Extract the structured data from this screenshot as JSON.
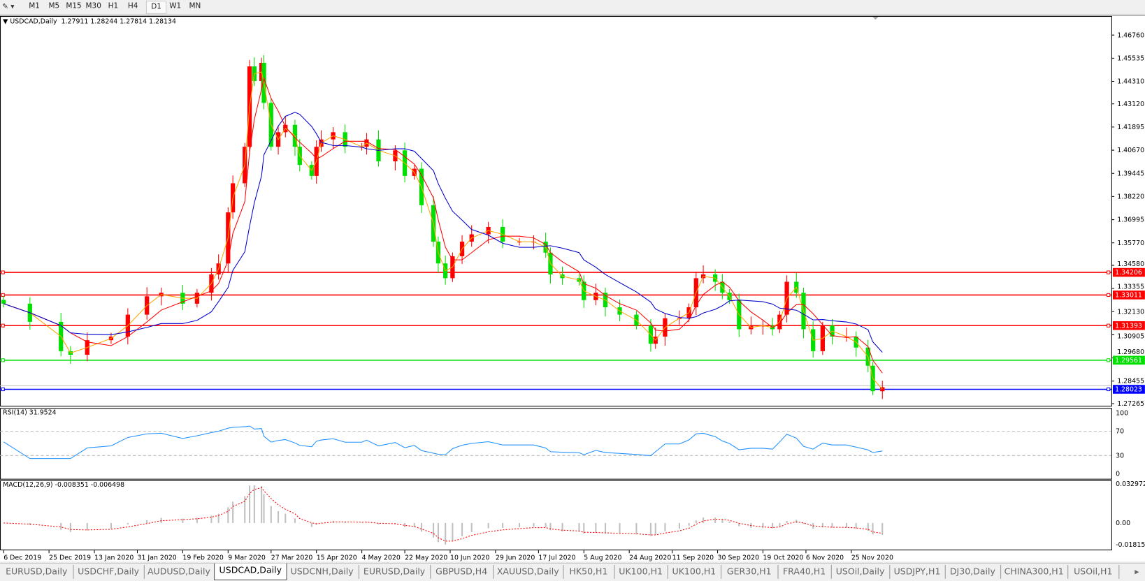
{
  "toolbar": {
    "timeframes": [
      "M1",
      "M5",
      "M15",
      "M30",
      "H1",
      "H4",
      "D1",
      "W1",
      "MN"
    ],
    "active_timeframe": "D1"
  },
  "chart": {
    "symbol_label": "USDCAD,Daily",
    "ohlc_label": "1.27911 1.28244 1.27814 1.28134",
    "rsi_label": "RSI(14) 31.9524",
    "macd_label": "MACD(12,26,9) -0.008351 -0.006498",
    "colors": {
      "bull": "#ff0000",
      "bear": "#00e000",
      "ma_fast": "#ffa500",
      "ma_mid": "#ff0000",
      "ma_slow": "#0000cc",
      "rsi": "#1e90ff",
      "macd_hist": "#c0c0c0",
      "macd_signal": "#ff0000"
    }
  },
  "chart_data": {
    "type": "candlestick",
    "ylim": [
      1.27265,
      1.4676
    ],
    "price_ticks": [
      "1.46760",
      "1.45535",
      "1.44310",
      "1.43120",
      "1.41895",
      "1.40670",
      "1.39445",
      "1.38220",
      "1.36995",
      "1.35770",
      "1.34580",
      "1.33355",
      "1.32130",
      "1.30905",
      "1.29680",
      "1.28455",
      "1.27265"
    ],
    "date_ticks": [
      "6 Dec 2019",
      "25 Dec 2019",
      "13 Jan 2020",
      "31 Jan 2020",
      "19 Feb 2020",
      "9 Mar 2020",
      "27 Mar 2020",
      "15 Apr 2020",
      "4 May 2020",
      "22 May 2020",
      "10 Jun 2020",
      "29 Jun 2020",
      "17 Jul 2020",
      "5 Aug 2020",
      "24 Aug 2020",
      "11 Sep 2020",
      "30 Sep 2020",
      "19 Oct 2020",
      "6 Nov 2020",
      "25 Nov 2020"
    ],
    "date_tick_dates": [
      "2019-12-06",
      "2019-12-25",
      "2020-01-13",
      "2020-01-31",
      "2020-02-19",
      "2020-03-09",
      "2020-03-27",
      "2020-04-15",
      "2020-05-04",
      "2020-05-22",
      "2020-06-10",
      "2020-06-29",
      "2020-07-17",
      "2020-08-05",
      "2020-08-24",
      "2020-09-11",
      "2020-09-30",
      "2020-10-19",
      "2020-11-06",
      "2020-11-25"
    ],
    "closes": [
      [
        "2019-12-06",
        1.3255
      ],
      [
        "2019-12-17",
        1.3159
      ],
      [
        "2019-12-30",
        1.3004
      ],
      [
        "2020-01-03",
        1.2985
      ],
      [
        "2020-01-10",
        1.3062
      ],
      [
        "2020-01-20",
        1.3081
      ],
      [
        "2020-01-27",
        1.3197
      ],
      [
        "2020-02-04",
        1.3294
      ],
      [
        "2020-02-10",
        1.3313
      ],
      [
        "2020-02-19",
        1.3255
      ],
      [
        "2020-02-25",
        1.3313
      ],
      [
        "2020-03-02",
        1.341
      ],
      [
        "2020-03-05",
        1.3468
      ],
      [
        "2020-03-09",
        1.3738
      ],
      [
        "2020-03-11",
        1.3892
      ],
      [
        "2020-03-16",
        1.4085
      ],
      [
        "2020-03-18",
        1.451
      ],
      [
        "2020-03-20",
        1.4433
      ],
      [
        "2020-03-23",
        1.4529
      ],
      [
        "2020-03-24",
        1.4317
      ],
      [
        "2020-03-27",
        1.4085
      ],
      [
        "2020-03-30",
        1.4162
      ],
      [
        "2020-04-02",
        1.4201
      ],
      [
        "2020-04-06",
        1.4085
      ],
      [
        "2020-04-08",
        1.3989
      ],
      [
        "2020-04-13",
        1.3931
      ],
      [
        "2020-04-15",
        1.4085
      ],
      [
        "2020-04-17",
        1.4124
      ],
      [
        "2020-04-22",
        1.4162
      ],
      [
        "2020-04-27",
        1.4085
      ],
      [
        "2020-05-04",
        1.4085
      ],
      [
        "2020-05-06",
        1.4124
      ],
      [
        "2020-05-11",
        1.4008
      ],
      [
        "2020-05-18",
        1.4066
      ],
      [
        "2020-05-22",
        1.3931
      ],
      [
        "2020-05-26",
        1.3969
      ],
      [
        "2020-05-29",
        1.3776
      ],
      [
        "2020-06-03",
        1.3583
      ],
      [
        "2020-06-05",
        1.3468
      ],
      [
        "2020-06-08",
        1.339
      ],
      [
        "2020-06-11",
        1.3506
      ],
      [
        "2020-06-15",
        1.3583
      ],
      [
        "2020-06-19",
        1.3622
      ],
      [
        "2020-06-26",
        1.3661
      ],
      [
        "2020-07-02",
        1.3583
      ],
      [
        "2020-07-09",
        1.3583
      ],
      [
        "2020-07-15",
        1.3583
      ],
      [
        "2020-07-20",
        1.3525
      ],
      [
        "2020-07-22",
        1.341
      ],
      [
        "2020-07-27",
        1.339
      ],
      [
        "2020-08-03",
        1.3371
      ],
      [
        "2020-08-05",
        1.3274
      ],
      [
        "2020-08-10",
        1.3313
      ],
      [
        "2020-08-14",
        1.3236
      ],
      [
        "2020-08-20",
        1.3197
      ],
      [
        "2020-08-27",
        1.3139
      ],
      [
        "2020-09-02",
        1.3043
      ],
      [
        "2020-09-04",
        1.3081
      ],
      [
        "2020-09-08",
        1.3178
      ],
      [
        "2020-09-14",
        1.3178
      ],
      [
        "2020-09-18",
        1.3236
      ],
      [
        "2020-09-21",
        1.339
      ],
      [
        "2020-09-24",
        1.341
      ],
      [
        "2020-09-29",
        1.3371
      ],
      [
        "2020-10-02",
        1.3313
      ],
      [
        "2020-10-05",
        1.3274
      ],
      [
        "2020-10-09",
        1.312
      ],
      [
        "2020-10-14",
        1.3139
      ],
      [
        "2020-10-19",
        1.3139
      ],
      [
        "2020-10-23",
        1.312
      ],
      [
        "2020-10-26",
        1.3197
      ],
      [
        "2020-10-29",
        1.3371
      ],
      [
        "2020-11-02",
        1.3313
      ],
      [
        "2020-11-05",
        1.312
      ],
      [
        "2020-11-09",
        1.3004
      ],
      [
        "2020-11-13",
        1.3139
      ],
      [
        "2020-11-17",
        1.3081
      ],
      [
        "2020-11-23",
        1.3081
      ],
      [
        "2020-11-27",
        1.3023
      ],
      [
        "2020-12-02",
        1.2927
      ],
      [
        "2020-12-04",
        1.2792
      ],
      [
        "2020-12-08",
        1.28134
      ]
    ],
    "horizontal_lines": [
      {
        "price": "1.34206",
        "color": "#ff0000"
      },
      {
        "price": "1.33011",
        "color": "#ff0000"
      },
      {
        "price": "1.31393",
        "color": "#ff0000"
      },
      {
        "price": "1.29561",
        "color": "#00e000"
      },
      {
        "price": "1.28023",
        "color": "#0000ff"
      }
    ],
    "rsi_ticks": [
      "100",
      "70",
      "30",
      "0"
    ],
    "macd_ticks": [
      "0.032972",
      "0.00",
      "-0.018154"
    ]
  },
  "tabs": [
    {
      "label": "EURUSD,Daily"
    },
    {
      "label": "USDCHF,Daily"
    },
    {
      "label": "AUDUSD,Daily"
    },
    {
      "label": "USDCAD,Daily",
      "active": true
    },
    {
      "label": "USDCNH,Daily"
    },
    {
      "label": "EURUSD,Daily"
    },
    {
      "label": "GBPUSD,H4"
    },
    {
      "label": "XAUUSD,Daily"
    },
    {
      "label": "HK50,H1"
    },
    {
      "label": "UK100,H1"
    },
    {
      "label": "UK100,H1"
    },
    {
      "label": "GER30,H1"
    },
    {
      "label": "FRA40,H1"
    },
    {
      "label": "USOil,Daily"
    },
    {
      "label": "USDJPY,H1"
    },
    {
      "label": "DJ30,Daily"
    },
    {
      "label": "CHINA300,H1"
    },
    {
      "label": "USOil,H1"
    }
  ]
}
